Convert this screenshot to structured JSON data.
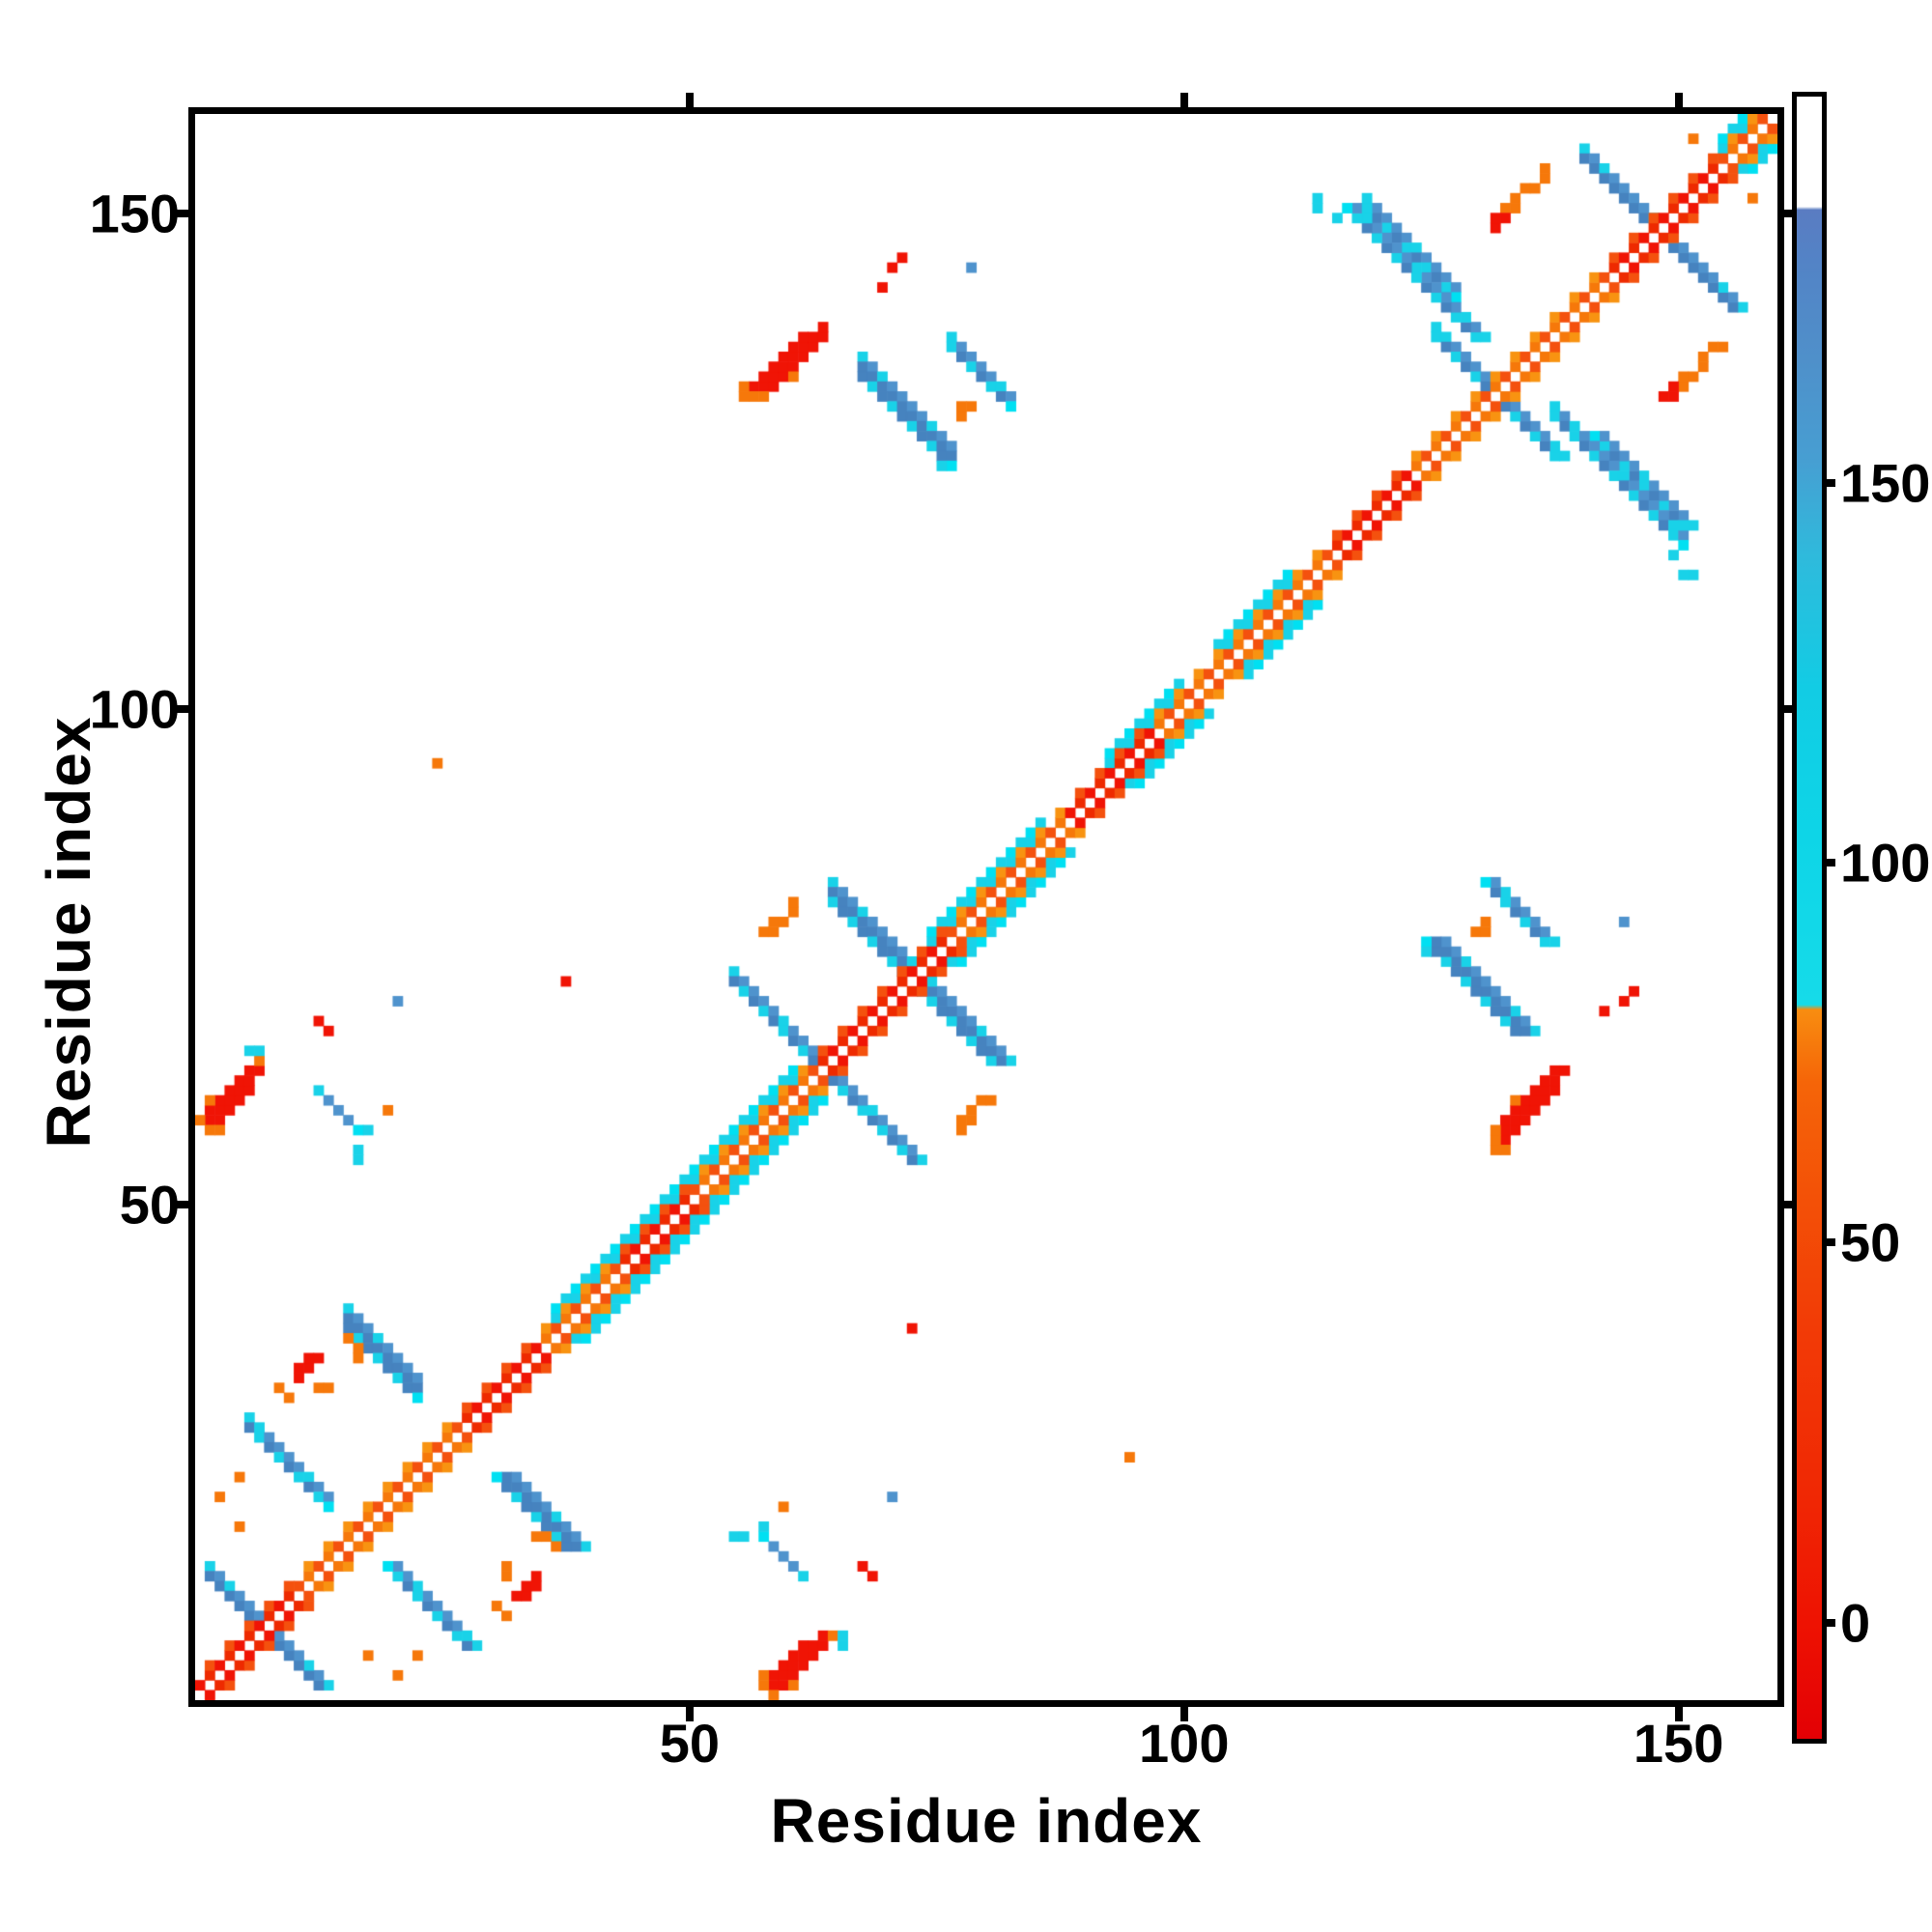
{
  "chart_data": {
    "type": "heatmap",
    "title": "",
    "xlabel": "Residue index",
    "ylabel": "Residue index",
    "n_residues": 160,
    "xlim": [
      0,
      159
    ],
    "ylim": [
      0,
      159
    ],
    "xticks": [
      50,
      100,
      150
    ],
    "yticks": [
      50,
      100,
      150
    ],
    "grid": false,
    "background": "#ffffff",
    "palette": {
      "red": "#f01405",
      "red2": "#ee2a00",
      "orangered": "#f4510e",
      "orange": "#f6780a",
      "orange2": "#f89311",
      "cyan": "#19d2e8",
      "cyan2": "#00e0f2",
      "steel": "#4f93cd",
      "steel2": "#4683bf",
      "white": "#ffffff"
    },
    "colorbar": {
      "ticks": [
        0,
        50,
        100,
        150
      ],
      "vmin": -15.3,
      "vmax": 200.8,
      "legend_position": "right",
      "stops": [
        [
          0.0,
          "#e30005"
        ],
        [
          0.07,
          "#ee1202"
        ],
        [
          0.15,
          "#f02804"
        ],
        [
          0.25,
          "#f23b06"
        ],
        [
          0.33,
          "#f35107"
        ],
        [
          0.4,
          "#f56508"
        ],
        [
          0.444,
          "#f88d10"
        ],
        [
          0.447,
          "#16dbe9"
        ],
        [
          0.55,
          "#0ed5e7"
        ],
        [
          0.64,
          "#12cce4"
        ],
        [
          0.72,
          "#2fbadc"
        ],
        [
          0.78,
          "#479ed2"
        ],
        [
          0.84,
          "#4f90ca"
        ],
        [
          0.9,
          "#5383c6"
        ],
        [
          0.931,
          "#5a7cc2"
        ],
        [
          0.933,
          "#ffffff"
        ],
        [
          1.0,
          "#ffffff"
        ]
      ]
    },
    "matrix": {
      "diagonal_band": {
        "range": [
          0,
          158
        ],
        "red_segments": [
          [
            0,
            9
          ],
          [
            27,
            34
          ],
          [
            43,
            49
          ],
          [
            63,
            75
          ],
          [
            88,
            96
          ],
          [
            115,
            122
          ],
          [
            143,
            153
          ]
        ],
        "cyan_flank_segments": [
          [
            36,
            44
          ],
          [
            44,
            60
          ],
          [
            74,
            85
          ],
          [
            92,
            99
          ],
          [
            103,
            110
          ],
          [
            154,
            157
          ]
        ]
      },
      "anti_strands": [
        {
          "sum": 14,
          "from": 1,
          "to": 6,
          "w": 2
        },
        {
          "sum": 33,
          "from": 5,
          "to": 13,
          "w": 2
        },
        {
          "sum": 54,
          "from": 15,
          "to": 22,
          "w": 3
        },
        {
          "sum": 73,
          "from": 12,
          "to": 16,
          "w": 1
        },
        {
          "sum": 127,
          "from": 54,
          "to": 63,
          "w": 2
        },
        {
          "sum": 146,
          "from": 64,
          "to": 72,
          "w": 3
        },
        {
          "sum": 202,
          "from": 67,
          "to": 76,
          "w": 3
        },
        {
          "sum": 213,
          "from": 76,
          "to": 82,
          "w": 2
        },
        {
          "sum": 263,
          "from": 125,
          "to": 131,
          "w": 2
        },
        {
          "sum": 269,
          "from": 118,
          "to": 127,
          "w": 2
        },
        {
          "sum": 267,
          "from": 137,
          "to": 150,
          "w": 2
        },
        {
          "sum": 296,
          "from": 140,
          "to": 148,
          "w": 2
        }
      ],
      "blob_cells": {
        "red": [
          [
            56,
            132
          ],
          [
            57,
            132
          ],
          [
            58,
            132
          ],
          [
            57,
            133
          ],
          [
            58,
            133
          ],
          [
            59,
            133
          ],
          [
            58,
            134
          ],
          [
            59,
            134
          ],
          [
            60,
            134
          ],
          [
            59,
            135
          ],
          [
            60,
            135
          ],
          [
            61,
            135
          ],
          [
            60,
            136
          ],
          [
            61,
            136
          ],
          [
            62,
            136
          ],
          [
            61,
            137
          ],
          [
            62,
            137
          ],
          [
            63,
            137
          ],
          [
            63,
            138
          ],
          [
            1,
            58
          ],
          [
            2,
            58
          ],
          [
            1,
            59
          ],
          [
            2,
            59
          ],
          [
            3,
            59
          ],
          [
            2,
            60
          ],
          [
            3,
            60
          ],
          [
            4,
            60
          ],
          [
            3,
            61
          ],
          [
            4,
            61
          ],
          [
            5,
            61
          ],
          [
            4,
            62
          ],
          [
            5,
            62
          ],
          [
            5,
            63
          ],
          [
            6,
            63
          ]
        ],
        "orange": [
          [
            55,
            131
          ],
          [
            56,
            131
          ],
          [
            55,
            132
          ],
          [
            57,
            131
          ],
          [
            60,
            133
          ],
          [
            1,
            57
          ],
          [
            2,
            57
          ],
          [
            0,
            58
          ],
          [
            1,
            60
          ],
          [
            6,
            64
          ]
        ]
      },
      "dots": {
        "orange": [
          [
            8,
            31
          ],
          [
            9,
            30
          ],
          [
            4,
            22
          ],
          [
            2,
            20
          ],
          [
            4,
            17
          ],
          [
            19,
            59
          ],
          [
            15,
            36
          ],
          [
            16,
            34
          ],
          [
            16,
            35
          ],
          [
            12,
            31
          ],
          [
            13,
            31
          ],
          [
            57,
            77
          ],
          [
            58,
            77
          ],
          [
            58,
            78
          ],
          [
            59,
            78
          ],
          [
            60,
            79
          ],
          [
            60,
            80
          ],
          [
            132,
            150
          ],
          [
            133,
            150
          ],
          [
            133,
            151
          ],
          [
            134,
            152
          ],
          [
            135,
            152
          ],
          [
            136,
            153
          ],
          [
            136,
            154
          ],
          [
            151,
            157
          ],
          [
            24,
            94
          ],
          [
            129,
            77
          ],
          [
            130,
            77
          ],
          [
            130,
            78
          ]
        ],
        "red": [
          [
            10,
            32
          ],
          [
            10,
            33
          ],
          [
            11,
            33
          ],
          [
            11,
            34
          ],
          [
            12,
            34
          ],
          [
            70,
            144
          ],
          [
            71,
            145
          ],
          [
            69,
            142
          ],
          [
            12,
            68
          ],
          [
            13,
            67
          ],
          [
            37,
            72
          ],
          [
            131,
            148
          ],
          [
            131,
            149
          ],
          [
            132,
            149
          ]
        ],
        "cyan": [
          [
            5,
            65
          ],
          [
            6,
            65
          ],
          [
            16,
            54
          ],
          [
            16,
            55
          ],
          [
            17,
            57
          ],
          [
            75,
            124
          ],
          [
            113,
            151
          ],
          [
            118,
            150
          ],
          [
            149,
            115
          ],
          [
            150,
            113
          ]
        ],
        "steel": [
          [
            20,
            70
          ],
          [
            78,
            144
          ]
        ]
      }
    }
  }
}
